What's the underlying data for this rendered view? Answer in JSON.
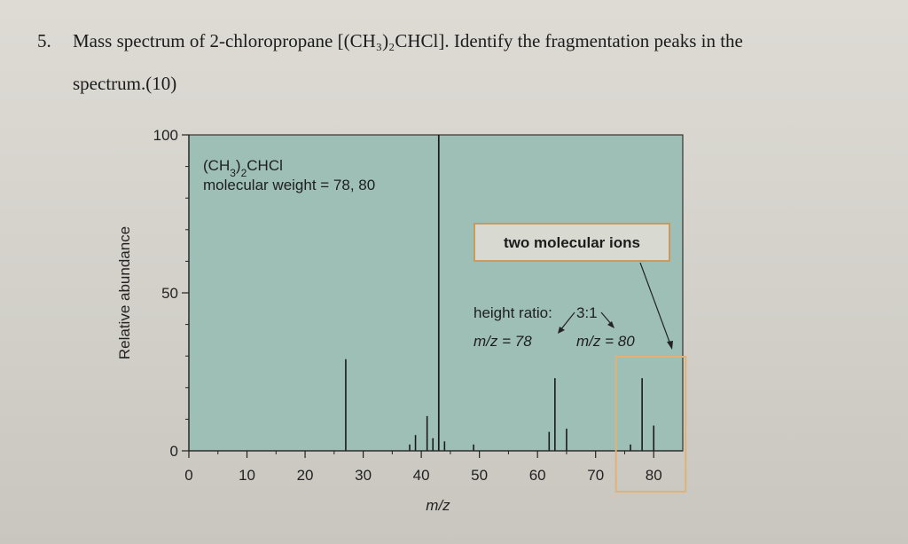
{
  "question": {
    "number": "5.",
    "line1": "Mass spectrum of 2-chloropropane [(CH₃)₂CHCl]. Identify the fragmentation peaks in the",
    "line2": "spectrum.(10)"
  },
  "chart_data": {
    "type": "bar",
    "xlabel": "m/z",
    "ylabel": "Relative abundance",
    "xlim": [
      0,
      85
    ],
    "ylim": [
      0,
      100
    ],
    "x_ticks": [
      0,
      10,
      20,
      30,
      40,
      50,
      60,
      70,
      80
    ],
    "y_ticks": [
      0,
      50,
      100
    ],
    "grid": false,
    "background_color": "#9ebfb5",
    "peaks": [
      {
        "mz": 27,
        "abundance": 29
      },
      {
        "mz": 38,
        "abundance": 2
      },
      {
        "mz": 39,
        "abundance": 5
      },
      {
        "mz": 41,
        "abundance": 11
      },
      {
        "mz": 42,
        "abundance": 4
      },
      {
        "mz": 43,
        "abundance": 100
      },
      {
        "mz": 44,
        "abundance": 3
      },
      {
        "mz": 49,
        "abundance": 2
      },
      {
        "mz": 62,
        "abundance": 6
      },
      {
        "mz": 63,
        "abundance": 23
      },
      {
        "mz": 65,
        "abundance": 7
      },
      {
        "mz": 76,
        "abundance": 2
      },
      {
        "mz": 78,
        "abundance": 23
      },
      {
        "mz": 80,
        "abundance": 8
      }
    ],
    "annotations": {
      "formula": "(CH3)2CHCl",
      "molecular_weight": "molecular weight = 78, 80",
      "callout": "two molecular ions",
      "height_ratio_label": "height ratio:",
      "height_ratio_value": "3:1",
      "mz78_label": "m/z = 78",
      "mz80_label": "m/z = 80"
    },
    "highlight_box_color": "#e0b278"
  }
}
